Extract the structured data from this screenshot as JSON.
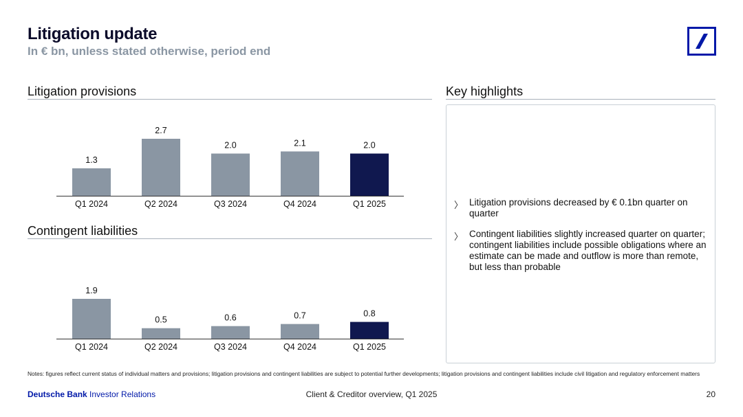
{
  "header": {
    "title": "Litigation update",
    "subtitle": "In € bn, unless stated otherwise, period end"
  },
  "sections": {
    "provisions_title": "Litigation provisions",
    "contingent_title": "Contingent liabilities",
    "highlights_title": "Key highlights"
  },
  "highlights": [
    "Litigation provisions decreased by € 0.1bn quarter on quarter",
    "Contingent liabilities slightly increased quarter on quarter; contingent liabilities include possible obligations where an estimate can be made and outflow is more than remote, but less than probable"
  ],
  "highlight_icon": "chevron-right-icon",
  "colors": {
    "bar_default": "#8a96a3",
    "bar_highlight": "#10184f",
    "brand": "#0018a8"
  },
  "chart_data": [
    {
      "type": "bar",
      "title": "Litigation provisions",
      "categories": [
        "Q1 2024",
        "Q2 2024",
        "Q3 2024",
        "Q4 2024",
        "Q1 2025"
      ],
      "values": [
        1.3,
        2.7,
        2.0,
        2.1,
        2.0
      ],
      "labels": [
        "1.3",
        "2.7",
        "2.0",
        "2.1",
        "2.0"
      ],
      "highlight_index": 4,
      "ylim": [
        0,
        2.7
      ],
      "xlabel": "",
      "ylabel": ""
    },
    {
      "type": "bar",
      "title": "Contingent liabilities",
      "categories": [
        "Q1 2024",
        "Q2 2024",
        "Q3 2024",
        "Q4 2024",
        "Q1 2025"
      ],
      "values": [
        1.9,
        0.5,
        0.6,
        0.7,
        0.8
      ],
      "labels": [
        "1.9",
        "0.5",
        "0.6",
        "0.7",
        "0.8"
      ],
      "highlight_index": 4,
      "ylim": [
        0,
        1.9
      ],
      "xlabel": "",
      "ylabel": ""
    }
  ],
  "notes": "Notes: figures reflect current status of individual matters and provisions; litigation provisions and contingent liabilities are subject to potential further developments; litigation provisions and contingent liabilities include civil litigation and regulatory enforcement matters",
  "footer": {
    "brand_bold": "Deutsche Bank",
    "brand_rest": " Investor Relations",
    "center": "Client & Creditor overview, Q1 2025",
    "page": "20"
  }
}
